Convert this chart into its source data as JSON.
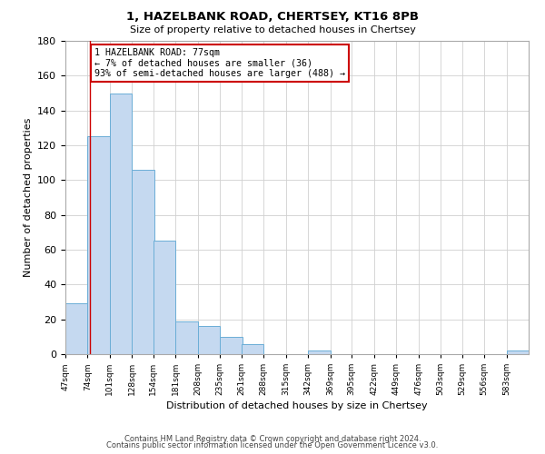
{
  "title": "1, HAZELBANK ROAD, CHERTSEY, KT16 8PB",
  "subtitle": "Size of property relative to detached houses in Chertsey",
  "xlabel": "Distribution of detached houses by size in Chertsey",
  "ylabel": "Number of detached properties",
  "bar_edges": [
    47,
    74,
    101,
    128,
    154,
    181,
    208,
    235,
    261,
    288,
    315,
    342,
    369,
    395,
    422,
    449,
    476,
    503,
    529,
    556,
    583
  ],
  "bar_heights": [
    29,
    125,
    150,
    106,
    65,
    19,
    16,
    10,
    6,
    0,
    0,
    2,
    0,
    0,
    0,
    0,
    0,
    0,
    0,
    0,
    2
  ],
  "bar_color": "#c5d9f0",
  "bar_edge_color": "#6baed6",
  "property_line_x": 77,
  "property_line_color": "#cc0000",
  "annotation_line1": "1 HAZELBANK ROAD: 77sqm",
  "annotation_line2": "← 7% of detached houses are smaller (36)",
  "annotation_line3": "93% of semi-detached houses are larger (488) →",
  "annotation_box_color": "#ffffff",
  "annotation_box_edge_color": "#cc0000",
  "ylim": [
    0,
    180
  ],
  "xlim": [
    47,
    610
  ],
  "tick_labels": [
    "47sqm",
    "74sqm",
    "101sqm",
    "128sqm",
    "154sqm",
    "181sqm",
    "208sqm",
    "235sqm",
    "261sqm",
    "288sqm",
    "315sqm",
    "342sqm",
    "369sqm",
    "395sqm",
    "422sqm",
    "449sqm",
    "476sqm",
    "503sqm",
    "529sqm",
    "556sqm",
    "583sqm"
  ],
  "footer_line1": "Contains HM Land Registry data © Crown copyright and database right 2024.",
  "footer_line2": "Contains public sector information licensed under the Open Government Licence v3.0.",
  "background_color": "#ffffff",
  "grid_color": "#d0d0d0"
}
